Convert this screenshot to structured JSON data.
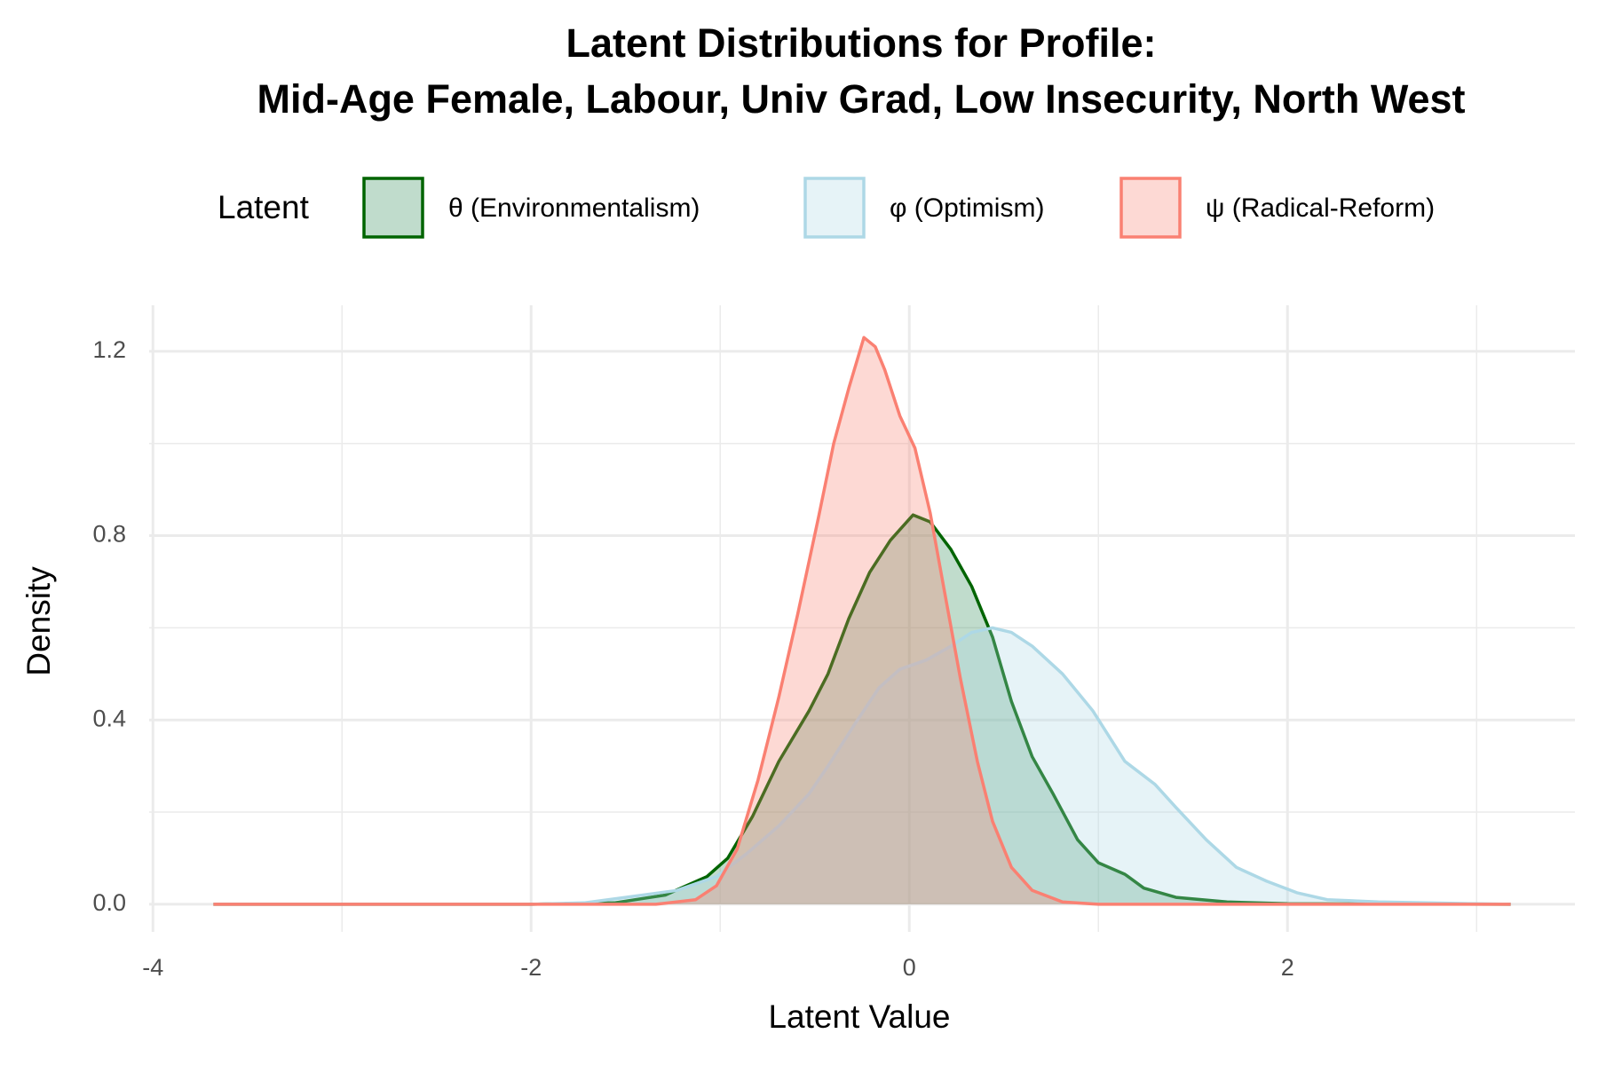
{
  "chart_data": {
    "type": "density",
    "title": "Latent Distributions for Profile:",
    "subtitle": "Mid-Age Female, Labour, Univ Grad, Low Insecurity, North West",
    "x_label": "Latent Value",
    "y_label": "Density",
    "legend_title": "Latent",
    "legend_position": "top",
    "grid": true,
    "fill_opacity": 0.3,
    "xlim": [
      -4.02,
      3.52
    ],
    "ylim": [
      -0.06,
      1.3
    ],
    "xticks": [
      -4,
      -2,
      0,
      2
    ],
    "xminor": [
      -3,
      -1,
      1,
      3
    ],
    "yticks": [
      {
        "value": 0,
        "label": "0.0"
      },
      0.4,
      0.8,
      1.2
    ],
    "yminor": [
      0.2,
      0.6,
      1.0
    ],
    "series": [
      {
        "name": "θ (Environmentalism)",
        "color": "#006400",
        "fill": "#2E8B57",
        "x": [
          -3.68,
          -2,
          -1.56,
          -1.29,
          -1.07,
          -0.96,
          -0.83,
          -0.69,
          -0.53,
          -0.43,
          -0.32,
          -0.21,
          -0.1,
          0.02,
          0.11,
          0.22,
          0.33,
          0.44,
          0.54,
          0.65,
          0.76,
          0.89,
          1.0,
          1.14,
          1.24,
          1.41,
          1.68,
          2.0,
          3.18
        ],
        "values": [
          0,
          0,
          0.003,
          0.02,
          0.06,
          0.1,
          0.19,
          0.31,
          0.42,
          0.5,
          0.62,
          0.72,
          0.79,
          0.845,
          0.83,
          0.77,
          0.69,
          0.58,
          0.44,
          0.32,
          0.24,
          0.14,
          0.09,
          0.065,
          0.035,
          0.015,
          0.005,
          0.001,
          0
        ]
      },
      {
        "name": "φ (Optimism)",
        "color": "#ADD8E6",
        "fill": "#ADD8E6",
        "x": [
          -3.68,
          -2,
          -1.72,
          -1.5,
          -1.23,
          -1.02,
          -0.86,
          -0.69,
          -0.53,
          -0.43,
          -0.29,
          -0.16,
          -0.05,
          0.09,
          0.22,
          0.33,
          0.44,
          0.54,
          0.65,
          0.81,
          0.97,
          1.14,
          1.3,
          1.41,
          1.57,
          1.73,
          1.89,
          2.05,
          2.21,
          2.48,
          2.86,
          3.18
        ],
        "values": [
          0,
          0,
          0.003,
          0.015,
          0.03,
          0.06,
          0.11,
          0.17,
          0.24,
          0.3,
          0.39,
          0.47,
          0.51,
          0.53,
          0.56,
          0.59,
          0.6,
          0.59,
          0.56,
          0.5,
          0.42,
          0.31,
          0.26,
          0.21,
          0.14,
          0.08,
          0.05,
          0.025,
          0.01,
          0.005,
          0.002,
          0
        ]
      },
      {
        "name": "ψ (Radical-Reform)",
        "color": "#FA8072",
        "fill": "#FA8072",
        "x": [
          -3.68,
          -1.34,
          -1.13,
          -1.02,
          -0.91,
          -0.8,
          -0.69,
          -0.59,
          -0.48,
          -0.4,
          -0.32,
          -0.24,
          -0.18,
          -0.13,
          -0.05,
          0.03,
          0.11,
          0.19,
          0.27,
          0.36,
          0.44,
          0.54,
          0.65,
          0.81,
          1.0,
          3.18
        ],
        "values": [
          0,
          0,
          0.01,
          0.04,
          0.12,
          0.27,
          0.45,
          0.63,
          0.84,
          1.0,
          1.12,
          1.23,
          1.21,
          1.16,
          1.06,
          0.99,
          0.85,
          0.67,
          0.49,
          0.31,
          0.18,
          0.08,
          0.03,
          0.005,
          0,
          0
        ]
      }
    ]
  }
}
